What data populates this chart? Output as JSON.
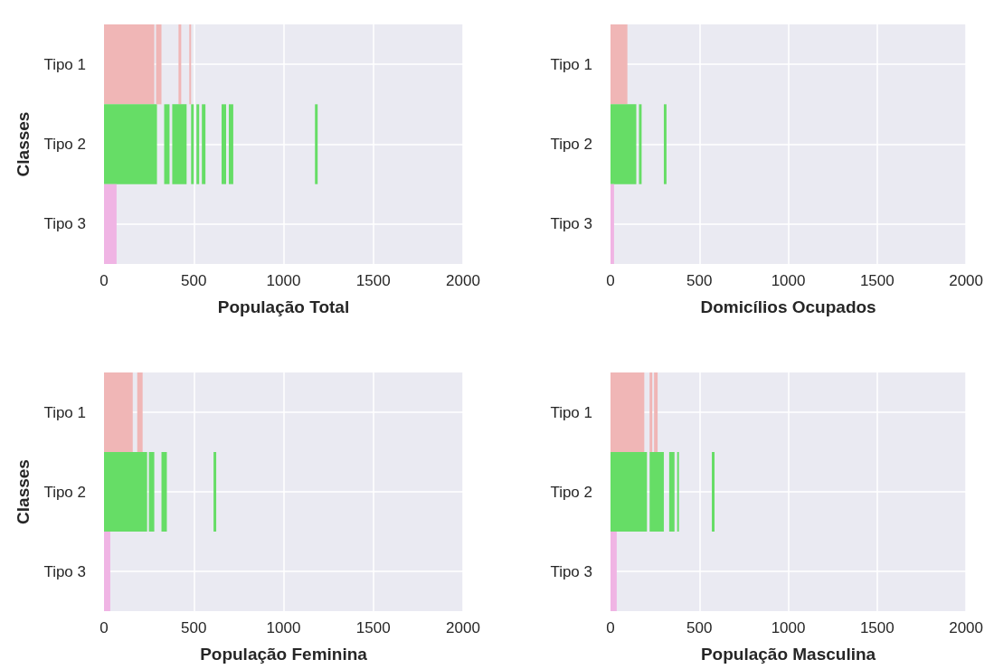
{
  "chart_data": [
    {
      "type": "bar",
      "orientation": "horizontal",
      "categories": [
        "Tipo 1",
        "Tipo 2",
        "Tipo 3"
      ],
      "xlabel": "População Total",
      "ylabel": "Classes",
      "xlim": [
        0,
        2000
      ],
      "xticks": [
        0,
        500,
        1000,
        1500,
        2000
      ],
      "grid": true,
      "series": [
        {
          "base": [
            0,
            0,
            0
          ],
          "values": [
            280,
            295,
            70
          ],
          "colors": [
            "#f0b6b6",
            "#66dd66",
            "#f0b4e4"
          ]
        },
        {
          "base": [
            290,
            335,
            null
          ],
          "values": [
            30,
            30,
            null
          ],
          "colors": [
            "#f0b6b6",
            "#66dd66",
            null
          ]
        },
        {
          "base": [
            415,
            380,
            null
          ],
          "values": [
            15,
            80,
            null
          ],
          "colors": [
            "#f0b6b6",
            "#66dd66",
            null
          ]
        },
        {
          "base": [
            475,
            485,
            null
          ],
          "values": [
            10,
            15,
            null
          ],
          "colors": [
            "#f0b6b6",
            "#66dd66",
            null
          ]
        },
        {
          "base": [
            null,
            515,
            null
          ],
          "values": [
            null,
            15,
            null
          ],
          "colors": [
            null,
            "#66dd66",
            null
          ]
        },
        {
          "base": [
            null,
            545,
            null
          ],
          "values": [
            null,
            20,
            null
          ],
          "colors": [
            null,
            "#66dd66",
            null
          ]
        },
        {
          "base": [
            null,
            655,
            null
          ],
          "values": [
            null,
            25,
            null
          ],
          "colors": [
            null,
            "#66dd66",
            null
          ]
        },
        {
          "base": [
            null,
            695,
            null
          ],
          "values": [
            null,
            25,
            null
          ],
          "colors": [
            null,
            "#66dd66",
            null
          ]
        },
        {
          "base": [
            null,
            1175,
            null
          ],
          "values": [
            null,
            15,
            null
          ],
          "colors": [
            null,
            "#66dd66",
            null
          ]
        }
      ]
    },
    {
      "type": "bar",
      "orientation": "horizontal",
      "categories": [
        "Tipo 1",
        "Tipo 2",
        "Tipo 3"
      ],
      "xlabel": "Domicílios Ocupados",
      "xlim": [
        0,
        2000
      ],
      "xticks": [
        0,
        500,
        1000,
        1500,
        2000
      ],
      "grid": true,
      "series": [
        {
          "base": [
            0,
            0,
            0
          ],
          "values": [
            95,
            145,
            20
          ],
          "colors": [
            "#f0b6b6",
            "#66dd66",
            "#f0b4e4"
          ]
        },
        {
          "base": [
            null,
            160,
            null
          ],
          "values": [
            null,
            15,
            null
          ],
          "colors": [
            null,
            "#66dd66",
            null
          ]
        },
        {
          "base": [
            null,
            300,
            null
          ],
          "values": [
            null,
            15,
            null
          ],
          "colors": [
            null,
            "#66dd66",
            null
          ]
        }
      ]
    },
    {
      "type": "bar",
      "orientation": "horizontal",
      "categories": [
        "Tipo 1",
        "Tipo 2",
        "Tipo 3"
      ],
      "xlabel": "População Feminina",
      "ylabel": "Classes",
      "xlim": [
        0,
        2000
      ],
      "xticks": [
        0,
        500,
        1000,
        1500,
        2000
      ],
      "grid": true,
      "series": [
        {
          "base": [
            0,
            0,
            0
          ],
          "values": [
            160,
            240,
            35
          ],
          "colors": [
            "#f0b6b6",
            "#66dd66",
            "#f0b4e4"
          ]
        },
        {
          "base": [
            185,
            250,
            null
          ],
          "values": [
            30,
            30,
            null
          ],
          "colors": [
            "#f0b6b6",
            "#66dd66",
            null
          ]
        },
        {
          "base": [
            null,
            320,
            null
          ],
          "values": [
            null,
            30,
            null
          ],
          "colors": [
            null,
            "#66dd66",
            null
          ]
        },
        {
          "base": [
            null,
            610,
            null
          ],
          "values": [
            null,
            15,
            null
          ],
          "colors": [
            null,
            "#66dd66",
            null
          ]
        }
      ]
    },
    {
      "type": "bar",
      "orientation": "horizontal",
      "categories": [
        "Tipo 1",
        "Tipo 2",
        "Tipo 3"
      ],
      "xlabel": "População Masculina",
      "xlim": [
        0,
        2000
      ],
      "xticks": [
        0,
        500,
        1000,
        1500,
        2000
      ],
      "grid": true,
      "series": [
        {
          "base": [
            0,
            0,
            0
          ],
          "values": [
            190,
            205,
            35
          ],
          "colors": [
            "#f0b6b6",
            "#66dd66",
            "#f0b4e4"
          ]
        },
        {
          "base": [
            220,
            220,
            null
          ],
          "values": [
            15,
            80,
            null
          ],
          "colors": [
            "#f0b6b6",
            "#66dd66",
            null
          ]
        },
        {
          "base": [
            245,
            330,
            null
          ],
          "values": [
            20,
            30,
            null
          ],
          "colors": [
            "#f0b6b6",
            "#66dd66",
            null
          ]
        },
        {
          "base": [
            null,
            375,
            null
          ],
          "values": [
            null,
            10,
            null
          ],
          "colors": [
            null,
            "#66dd66",
            null
          ]
        },
        {
          "base": [
            null,
            570,
            null
          ],
          "values": [
            null,
            15,
            null
          ],
          "colors": [
            null,
            "#66dd66",
            null
          ]
        }
      ]
    }
  ]
}
